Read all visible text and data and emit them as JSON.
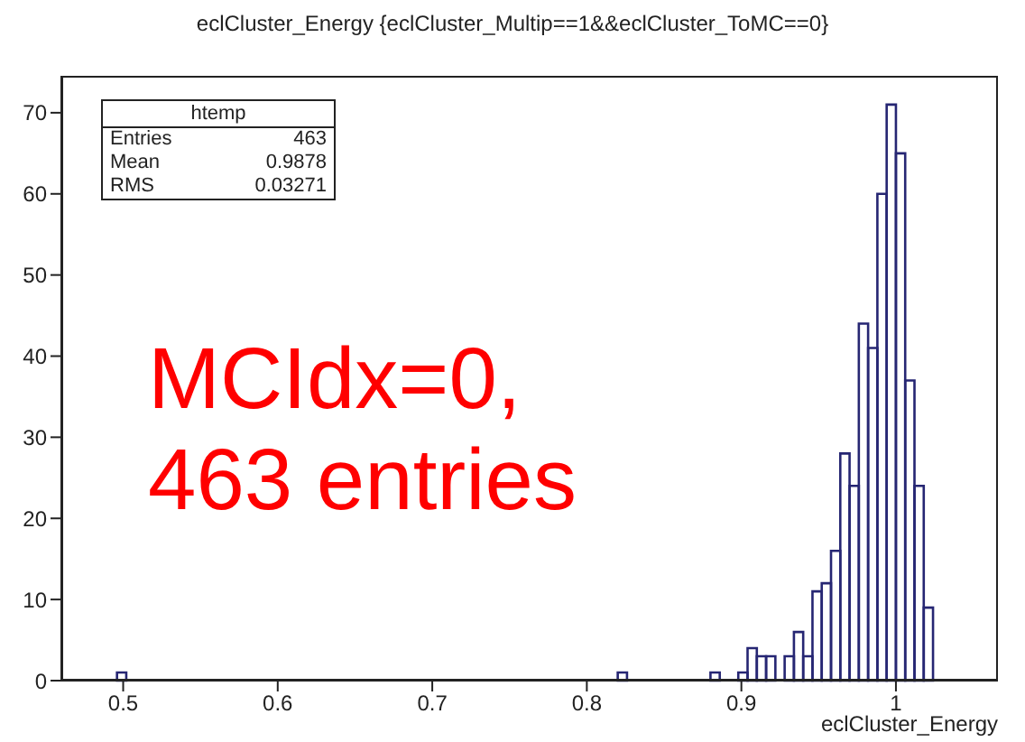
{
  "chart_data": {
    "type": "histogram",
    "title": "eclCluster_Energy {eclCluster_Multip==1&&eclCluster_ToMC==0}",
    "xlabel": "eclCluster_Energy",
    "bins": [
      0.46,
      0.466,
      0.472,
      0.478,
      0.484,
      0.49,
      0.496,
      0.502,
      0.508,
      0.514,
      0.52,
      0.526,
      0.532,
      0.538,
      0.544,
      0.55,
      0.556,
      0.562,
      0.568,
      0.574,
      0.58,
      0.586,
      0.592,
      0.598,
      0.604,
      0.61,
      0.616,
      0.622,
      0.628,
      0.634,
      0.64,
      0.646,
      0.652,
      0.658,
      0.664,
      0.67,
      0.676,
      0.682,
      0.688,
      0.694,
      0.7,
      0.706,
      0.712,
      0.718,
      0.724,
      0.73,
      0.736,
      0.742,
      0.748,
      0.754,
      0.76,
      0.766,
      0.772,
      0.778,
      0.784,
      0.79,
      0.796,
      0.802,
      0.808,
      0.814,
      0.82,
      0.826,
      0.832,
      0.838,
      0.844,
      0.85,
      0.856,
      0.862,
      0.868,
      0.874,
      0.88,
      0.886,
      0.892,
      0.898,
      0.904,
      0.91,
      0.916,
      0.922,
      0.928,
      0.934,
      0.94,
      0.946,
      0.952,
      0.958,
      0.964,
      0.97,
      0.976,
      0.982,
      0.988,
      0.994,
      1.0,
      1.006,
      1.012,
      1.018,
      1.024,
      1.03,
      1.036,
      1.042,
      1.048,
      1.054,
      1.06
    ],
    "values": [
      0,
      0,
      0,
      0,
      0,
      0,
      1,
      0,
      0,
      0,
      0,
      0,
      0,
      0,
      0,
      0,
      0,
      0,
      0,
      0,
      0,
      0,
      0,
      0,
      0,
      0,
      0,
      0,
      0,
      0,
      0,
      0,
      0,
      0,
      0,
      0,
      0,
      0,
      0,
      0,
      0,
      0,
      0,
      0,
      0,
      0,
      0,
      0,
      0,
      0,
      0,
      0,
      0,
      0,
      0,
      0,
      0,
      0,
      0,
      0,
      1,
      0,
      0,
      0,
      0,
      0,
      0,
      0,
      0,
      0,
      1,
      0,
      0,
      1,
      4,
      3,
      3,
      0,
      3,
      6,
      3,
      11,
      12,
      16,
      28,
      24,
      44,
      41,
      60,
      71,
      65,
      37,
      24,
      9,
      0,
      0,
      0,
      0,
      0,
      0
    ],
    "color": "#262673",
    "xlim": [
      0.46,
      1.066
    ],
    "ylim": [
      0,
      74.55
    ],
    "xticks": [
      0.5,
      0.6,
      0.7,
      0.8,
      0.9,
      1
    ],
    "yticks": [
      0,
      10,
      20,
      30,
      40,
      50,
      60,
      70
    ],
    "annotations": [
      "htemp",
      "Entries",
      "463",
      "Mean",
      "0.9878",
      "RMS",
      "0.03271",
      "MCIdx=0,",
      "463 entries"
    ]
  }
}
